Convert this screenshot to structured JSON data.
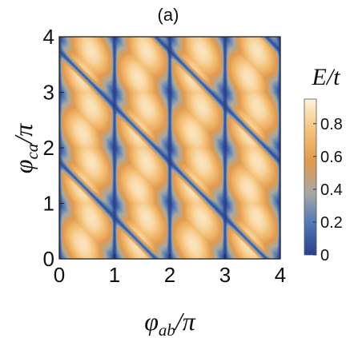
{
  "chart_data": {
    "type": "heatmap",
    "panel_label": "(a)",
    "xlabel": {
      "symbol": "φ",
      "sub": "ab",
      "tail": "/π"
    },
    "ylabel": {
      "symbol": "φ",
      "sub": "ca",
      "tail": "/π"
    },
    "xlim": [
      0,
      4
    ],
    "ylim": [
      0,
      4
    ],
    "x_ticks": [
      "0",
      "1",
      "2",
      "3",
      "4"
    ],
    "y_ticks": [
      "0",
      "1",
      "2",
      "3",
      "4"
    ],
    "colorbar": {
      "title": "E/t",
      "range": [
        0,
        0.95
      ],
      "ticks": [
        "0",
        "0.2",
        "0.4",
        "0.6",
        "0.8"
      ],
      "tick_values": [
        0,
        0.2,
        0.4,
        0.6,
        0.8
      ],
      "colors": [
        "#2c3f8c",
        "#4f78b5",
        "#a6aaa4",
        "#e39a4c",
        "#f5c27a",
        "#fdf4dc"
      ]
    },
    "grid": false
  }
}
